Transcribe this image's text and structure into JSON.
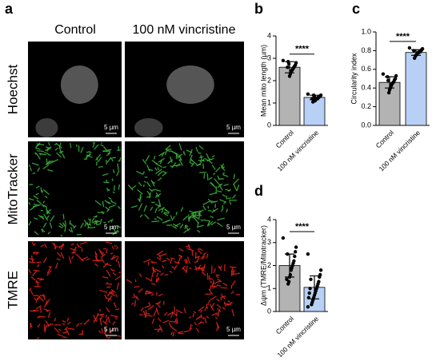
{
  "figure": {
    "panel_a": {
      "letter": "a",
      "columns": [
        "Control",
        "100 nM vincristine"
      ],
      "rows": [
        "Hoechst",
        "MitoTracker",
        "TMRE"
      ],
      "scale_bar": "5 µm"
    }
  },
  "chart_data": [
    {
      "type": "bar",
      "letter": "b",
      "ylabel": "Mean mito length (µm)",
      "categories": [
        "Control",
        "100 nM vincristine"
      ],
      "values": [
        2.6,
        1.25
      ],
      "errors": [
        0.25,
        0.1
      ],
      "points": [
        [
          2.9,
          2.8,
          2.7,
          2.65,
          2.6,
          2.55,
          2.5,
          2.45,
          2.4,
          2.3,
          2.2,
          2.75,
          2.85,
          2.6
        ],
        [
          1.4,
          1.35,
          1.3,
          1.3,
          1.25,
          1.25,
          1.2,
          1.2,
          1.15,
          1.1,
          1.3,
          1.35,
          1.05,
          1.2
        ]
      ],
      "colors": [
        "#b3b3b3",
        "#b8d0f5"
      ],
      "ylim": [
        0,
        4
      ],
      "yticks": [
        0,
        1,
        2,
        3,
        4
      ],
      "significance": "****"
    },
    {
      "type": "bar",
      "letter": "c",
      "ylabel": "Circularity index",
      "categories": [
        "Control",
        "100 nM vincristine"
      ],
      "values": [
        0.46,
        0.78
      ],
      "errors": [
        0.06,
        0.03
      ],
      "points": [
        [
          0.55,
          0.53,
          0.5,
          0.49,
          0.47,
          0.46,
          0.45,
          0.44,
          0.42,
          0.4,
          0.38,
          0.35,
          0.48,
          0.52
        ],
        [
          0.83,
          0.82,
          0.81,
          0.8,
          0.79,
          0.79,
          0.78,
          0.78,
          0.77,
          0.76,
          0.75,
          0.74,
          0.72,
          0.8
        ]
      ],
      "colors": [
        "#b3b3b3",
        "#b8d0f5"
      ],
      "ylim": [
        0,
        1
      ],
      "yticks": [
        {
          "value": 0,
          "label": "0.0"
        },
        0.2,
        0.4,
        0.6,
        0.8,
        {
          "value": 1,
          "label": "1.0"
        }
      ],
      "significance": "****"
    },
    {
      "type": "bar",
      "letter": "d",
      "ylabel": "Δψm (TMRE/Mitotracker)",
      "categories": [
        "Control",
        "100 nM vincristine"
      ],
      "values": [
        2.0,
        1.05
      ],
      "errors": [
        0.5,
        0.5
      ],
      "points": [
        [
          3.2,
          2.8,
          2.6,
          2.4,
          2.2,
          2.1,
          2.0,
          1.9,
          1.8,
          1.6,
          1.5,
          1.3,
          1.2,
          2.5,
          1.4
        ],
        [
          2.5,
          1.8,
          1.6,
          1.5,
          1.3,
          1.2,
          1.1,
          1.0,
          0.9,
          0.8,
          0.7,
          0.6,
          0.5,
          0.4,
          0.3,
          1.4,
          1.0,
          0.8,
          0.6,
          0.2
        ]
      ],
      "colors": [
        "#b3b3b3",
        "#b8d0f5"
      ],
      "ylim": [
        0,
        4
      ],
      "yticks": [
        0,
        1,
        2,
        3,
        4
      ],
      "significance": "****"
    }
  ]
}
